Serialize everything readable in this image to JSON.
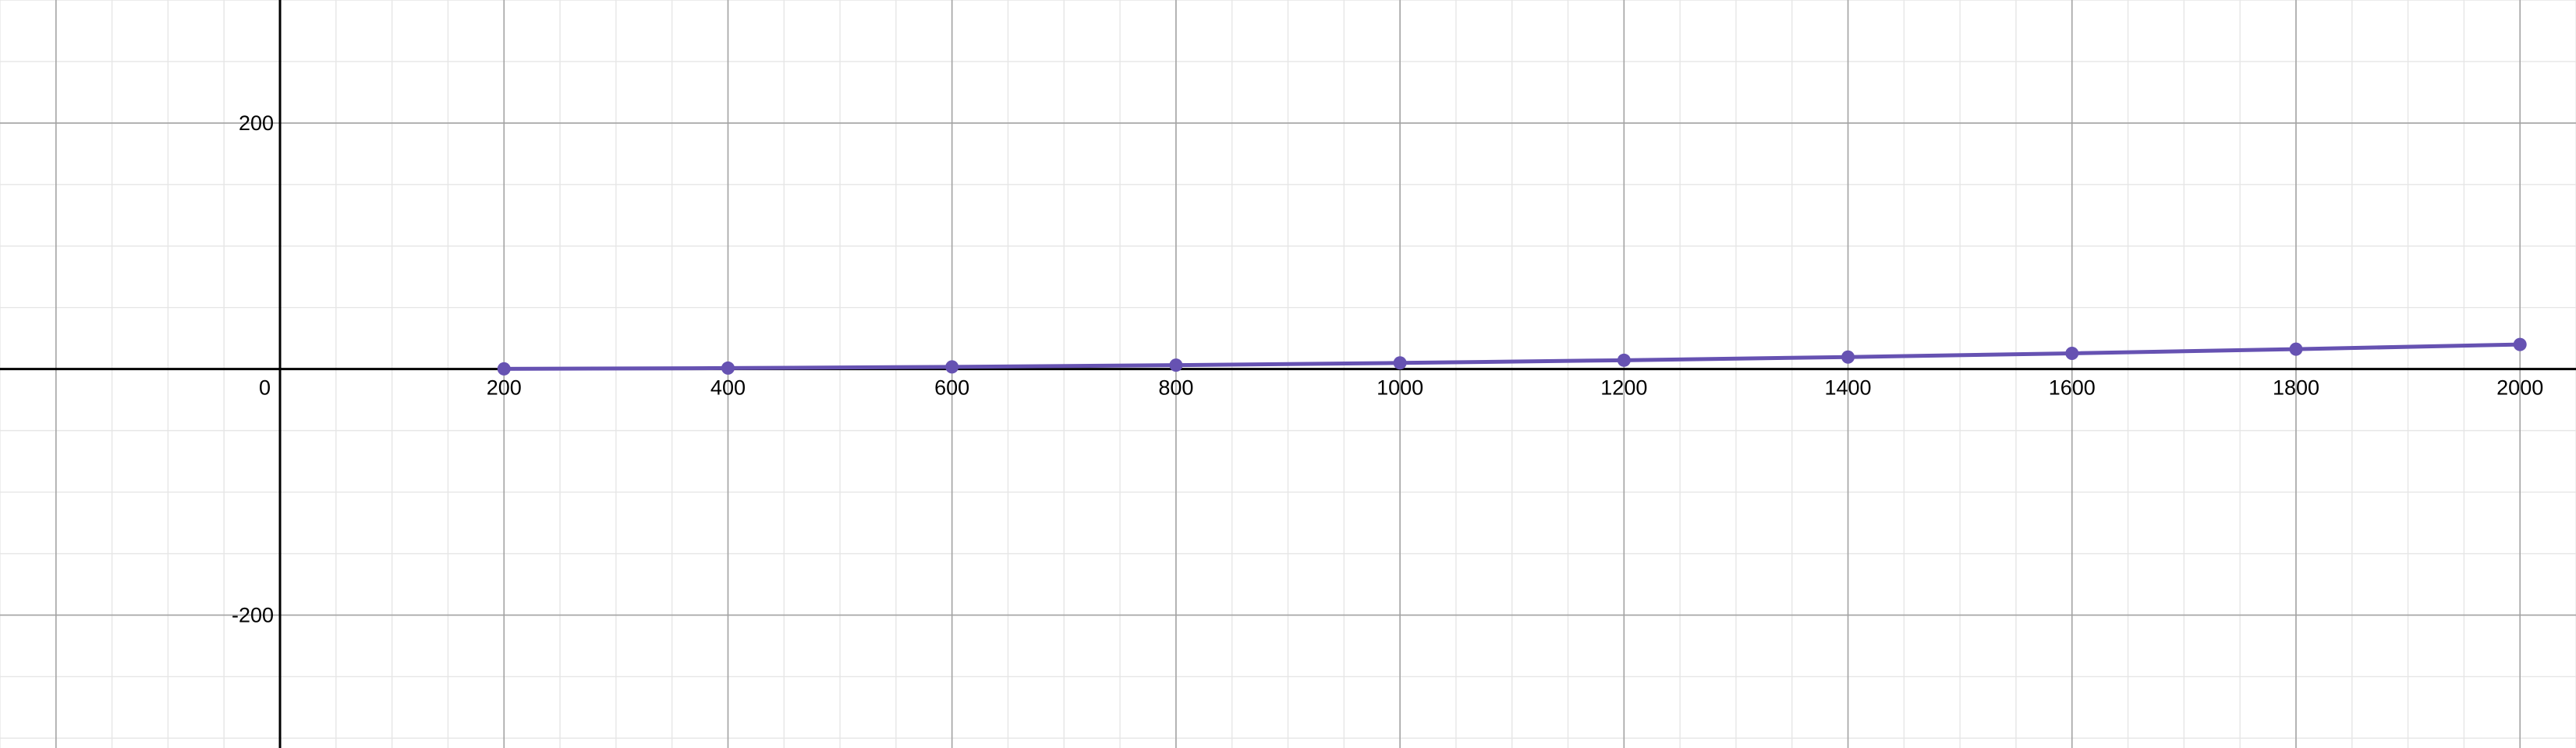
{
  "chart_data": {
    "type": "line",
    "title": "",
    "xlabel": "",
    "ylabel": "",
    "xlim": [
      -250,
      2050
    ],
    "ylim": [
      -308,
      300
    ],
    "grid": true,
    "x_major_ticks": [
      200,
      400,
      600,
      800,
      1000,
      1200,
      1400,
      1600,
      1800,
      2000
    ],
    "x_tick_labels": [
      "200",
      "400",
      "600",
      "800",
      "1000",
      "1200",
      "1400",
      "1600",
      "1800",
      "2000"
    ],
    "y_major_ticks": [
      -200,
      200
    ],
    "y_tick_labels": [
      "-200",
      "200"
    ],
    "origin_label": "0",
    "x_minor_step": 50,
    "y_minor_step": 50,
    "series": [
      {
        "color": "#6652b2",
        "points": [
          {
            "x": 200,
            "y": 0.2
          },
          {
            "x": 400,
            "y": 0.8
          },
          {
            "x": 600,
            "y": 1.8
          },
          {
            "x": 800,
            "y": 3.2
          },
          {
            "x": 1000,
            "y": 5
          },
          {
            "x": 1200,
            "y": 7.2
          },
          {
            "x": 1400,
            "y": 9.8
          },
          {
            "x": 1600,
            "y": 12.8
          },
          {
            "x": 1800,
            "y": 16.2
          },
          {
            "x": 2000,
            "y": 20
          }
        ]
      }
    ]
  }
}
